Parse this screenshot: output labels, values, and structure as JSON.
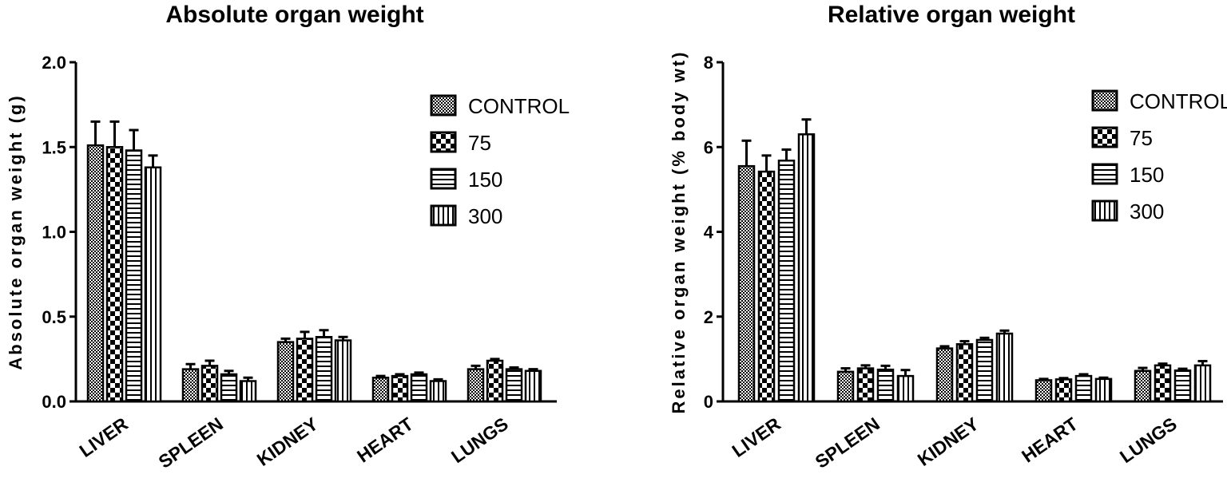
{
  "chart_data": [
    {
      "type": "bar",
      "title": "Absolute organ weight",
      "xlabel": "",
      "ylabel": "Absolute organ weight (g)",
      "ylim": [
        0,
        2.0
      ],
      "yticks": [
        "0.0",
        "0.5",
        "1.0",
        "1.5",
        "2.0"
      ],
      "ytick_values": [
        0,
        0.5,
        1.0,
        1.5,
        2.0
      ],
      "categories": [
        "LIVER",
        "SPLEEN",
        "KIDNEY",
        "HEART",
        "LUNGS"
      ],
      "series": [
        {
          "name": "CONTROL",
          "pattern": "check",
          "values": [
            1.51,
            0.19,
            0.35,
            0.14,
            0.19
          ],
          "errors": [
            0.14,
            0.03,
            0.02,
            0.01,
            0.02
          ]
        },
        {
          "name": "75",
          "pattern": "bigcheck",
          "values": [
            1.5,
            0.21,
            0.37,
            0.15,
            0.24
          ],
          "errors": [
            0.15,
            0.03,
            0.04,
            0.01,
            0.01
          ]
        },
        {
          "name": "150",
          "pattern": "hline",
          "values": [
            1.48,
            0.16,
            0.38,
            0.16,
            0.19
          ],
          "errors": [
            0.12,
            0.02,
            0.04,
            0.01,
            0.01
          ]
        },
        {
          "name": "300",
          "pattern": "vline",
          "values": [
            1.38,
            0.12,
            0.36,
            0.12,
            0.18
          ],
          "errors": [
            0.07,
            0.02,
            0.02,
            0.01,
            0.01
          ]
        }
      ],
      "grid": false,
      "legend": "top-right"
    },
    {
      "type": "bar",
      "title": "Relative organ weight",
      "xlabel": "",
      "ylabel": "Relative organ weight (% body wt)",
      "ylim": [
        0,
        8
      ],
      "yticks": [
        "0",
        "2",
        "4",
        "6",
        "8"
      ],
      "ytick_values": [
        0,
        2,
        4,
        6,
        8
      ],
      "categories": [
        "LIVER",
        "SPLEEN",
        "KIDNEY",
        "HEART",
        "LUNGS"
      ],
      "series": [
        {
          "name": "CONTROL",
          "pattern": "check",
          "values": [
            5.55,
            0.7,
            1.25,
            0.5,
            0.72
          ],
          "errors": [
            0.6,
            0.08,
            0.05,
            0.03,
            0.07
          ]
        },
        {
          "name": "75",
          "pattern": "bigcheck",
          "values": [
            5.42,
            0.78,
            1.35,
            0.52,
            0.85
          ],
          "errors": [
            0.38,
            0.07,
            0.07,
            0.03,
            0.04
          ]
        },
        {
          "name": "150",
          "pattern": "hline",
          "values": [
            5.68,
            0.75,
            1.45,
            0.6,
            0.73
          ],
          "errors": [
            0.26,
            0.09,
            0.05,
            0.04,
            0.04
          ]
        },
        {
          "name": "300",
          "pattern": "vline",
          "values": [
            6.3,
            0.6,
            1.6,
            0.53,
            0.85
          ],
          "errors": [
            0.35,
            0.14,
            0.07,
            0.03,
            0.1
          ]
        }
      ],
      "grid": false,
      "legend": "top-right"
    }
  ]
}
